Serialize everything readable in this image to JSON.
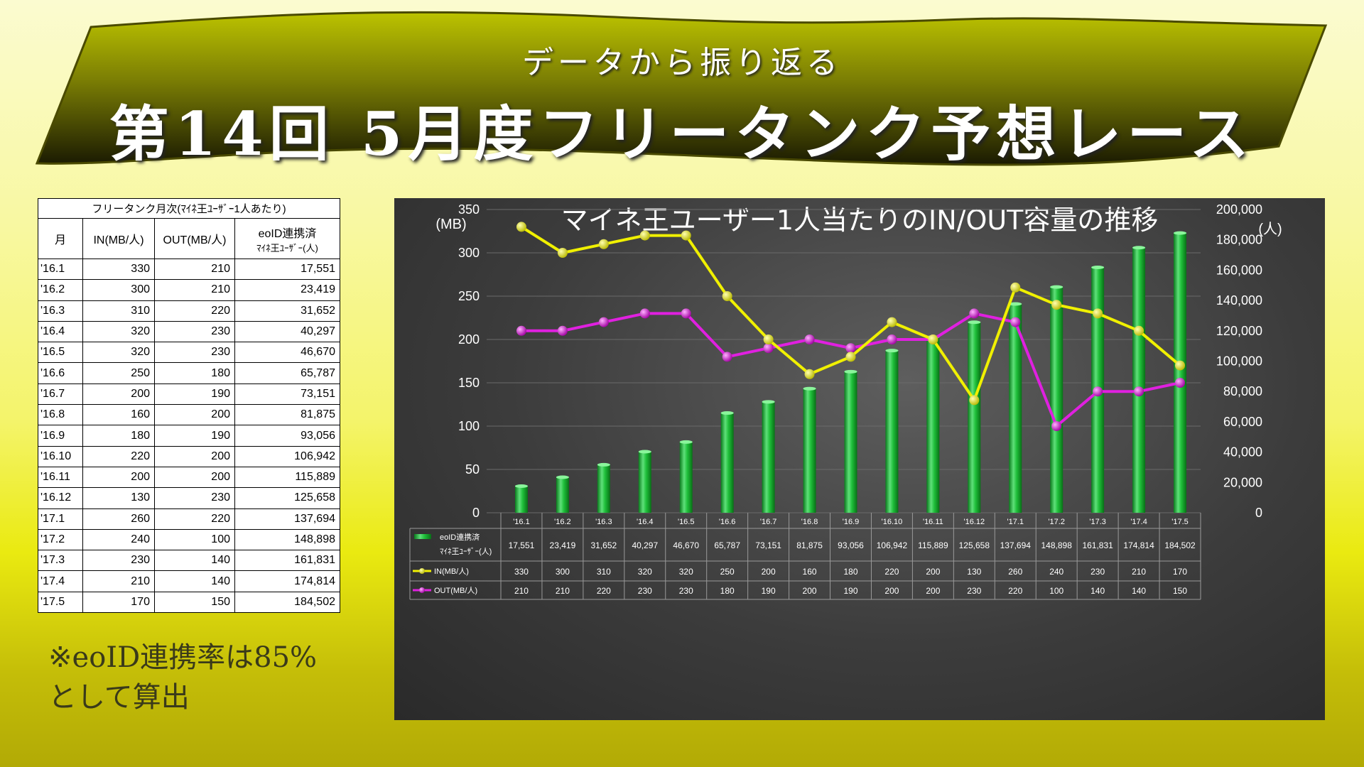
{
  "header": {
    "subtitle": "データから振り返る",
    "title": "第14回 5月度フリータンク予想レース"
  },
  "table": {
    "caption": "フリータンク月次(ﾏｲﾈ王ﾕｰｻﾞｰ1人あたり)",
    "col_month": "月",
    "col_in": "IN(MB/人)",
    "col_out": "OUT(MB/人)",
    "col_users_line1": "eoID連携済",
    "col_users_line2": "ﾏｲﾈ王ﾕｰｻﾞｰ(人)",
    "rows": [
      [
        "'16.1",
        "330",
        "210",
        "17,551"
      ],
      [
        "'16.2",
        "300",
        "210",
        "23,419"
      ],
      [
        "'16.3",
        "310",
        "220",
        "31,652"
      ],
      [
        "'16.4",
        "320",
        "230",
        "40,297"
      ],
      [
        "'16.5",
        "320",
        "230",
        "46,670"
      ],
      [
        "'16.6",
        "250",
        "180",
        "65,787"
      ],
      [
        "'16.7",
        "200",
        "190",
        "73,151"
      ],
      [
        "'16.8",
        "160",
        "200",
        "81,875"
      ],
      [
        "'16.9",
        "180",
        "190",
        "93,056"
      ],
      [
        "'16.10",
        "220",
        "200",
        "106,942"
      ],
      [
        "'16.11",
        "200",
        "200",
        "115,889"
      ],
      [
        "'16.12",
        "130",
        "230",
        "125,658"
      ],
      [
        "'17.1",
        "260",
        "220",
        "137,694"
      ],
      [
        "'17.2",
        "240",
        "100",
        "148,898"
      ],
      [
        "'17.3",
        "230",
        "140",
        "161,831"
      ],
      [
        "'17.4",
        "210",
        "140",
        "174,814"
      ],
      [
        "'17.5",
        "170",
        "150",
        "184,502"
      ]
    ]
  },
  "note": {
    "line1": "※eoID連携率は85%",
    "line2": "として算出"
  },
  "colors": {
    "bar": "#1fbf3a",
    "in_line": "#f0f000",
    "out_line": "#e020e0"
  },
  "chart_data": {
    "type": "bar",
    "title": "マイネ王ユーザー1人当たりのIN/OUT容量の推移",
    "ylabel": "(MB)",
    "y2label": "(人)",
    "ylim": [
      0,
      350
    ],
    "y2lim": [
      0,
      200000
    ],
    "yticks": [
      "0",
      "50",
      "100",
      "150",
      "200",
      "250",
      "300",
      "350"
    ],
    "y2ticks": [
      "0",
      "20,000",
      "40,000",
      "60,000",
      "80,000",
      "100,000",
      "120,000",
      "140,000",
      "160,000",
      "180,000",
      "200,000"
    ],
    "categories": [
      "'16.1",
      "'16.2",
      "'16.3",
      "'16.4",
      "'16.5",
      "'16.6",
      "'16.7",
      "'16.8",
      "'16.9",
      "'16.10",
      "'16.11",
      "'16.12",
      "'17.1",
      "'17.2",
      "'17.3",
      "'17.4",
      "'17.5"
    ],
    "series": [
      {
        "name": "eoID連携済マイネ王ユーザー(人)",
        "legend_line1": "eoID連携済",
        "legend_line2": "ﾏｲﾈ王ﾕｰｻﾞｰ(人)",
        "type": "bar",
        "axis": "right",
        "values": [
          17551,
          23419,
          31652,
          40297,
          46670,
          65787,
          73151,
          81875,
          93056,
          106942,
          115889,
          125658,
          137694,
          148898,
          161831,
          174814,
          184502
        ],
        "labels": [
          "17,551",
          "23,419",
          "31,652",
          "40,297",
          "46,670",
          "65,787",
          "73,151",
          "81,875",
          "93,056",
          "106,942",
          "115,889",
          "125,658",
          "137,694",
          "148,898",
          "161,831",
          "174,814",
          "184,502"
        ]
      },
      {
        "name": "IN(MB/人)",
        "type": "line",
        "axis": "left",
        "values": [
          330,
          300,
          310,
          320,
          320,
          250,
          200,
          160,
          180,
          220,
          200,
          130,
          260,
          240,
          230,
          210,
          170
        ]
      },
      {
        "name": "OUT(MB/人)",
        "type": "line",
        "axis": "left",
        "values": [
          210,
          210,
          220,
          230,
          230,
          180,
          190,
          200,
          190,
          200,
          200,
          230,
          220,
          100,
          140,
          140,
          150
        ]
      }
    ]
  }
}
